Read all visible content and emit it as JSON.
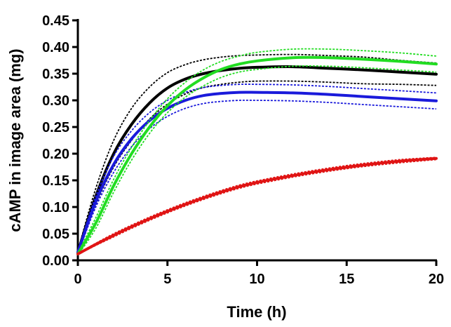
{
  "chart_data": {
    "type": "line",
    "title": "",
    "xlabel": "Time (h)",
    "ylabel": "cAMP in image area (mg)",
    "xlim": [
      0,
      20
    ],
    "ylim": [
      0,
      0.45
    ],
    "xticks": [
      0,
      5,
      10,
      15,
      20
    ],
    "yticks": [
      0.0,
      0.05,
      0.1,
      0.15,
      0.2,
      0.25,
      0.3,
      0.35,
      0.4,
      0.45
    ],
    "xtick_labels": [
      "0",
      "5",
      "10",
      "15",
      "20"
    ],
    "ytick_labels": [
      "0.00",
      "0.05",
      "0.10",
      "0.15",
      "0.20",
      "0.25",
      "0.30",
      "0.35",
      "0.40",
      "0.45"
    ],
    "grid": false,
    "legend": "none",
    "x": [
      0,
      1,
      2,
      3,
      4,
      5,
      6,
      7,
      8,
      9,
      10,
      12,
      14,
      16,
      18,
      20
    ],
    "series": [
      {
        "color": "#000000",
        "values": [
          0.015,
          0.12,
          0.2,
          0.255,
          0.295,
          0.323,
          0.34,
          0.35,
          0.356,
          0.36,
          0.362,
          0.363,
          0.36,
          0.357,
          0.353,
          0.349
        ],
        "upper": [
          0.018,
          0.135,
          0.225,
          0.285,
          0.325,
          0.352,
          0.367,
          0.376,
          0.381,
          0.384,
          0.385,
          0.386,
          0.384,
          0.381,
          0.375,
          0.37
        ],
        "lower": [
          0.012,
          0.105,
          0.175,
          0.225,
          0.265,
          0.293,
          0.312,
          0.324,
          0.33,
          0.334,
          0.336,
          0.336,
          0.334,
          0.331,
          0.33,
          0.328
        ]
      },
      {
        "color": "#1a1adb",
        "values": [
          0.015,
          0.11,
          0.18,
          0.228,
          0.262,
          0.285,
          0.3,
          0.309,
          0.313,
          0.315,
          0.315,
          0.314,
          0.311,
          0.307,
          0.303,
          0.299
        ],
        "upper": [
          0.018,
          0.12,
          0.195,
          0.243,
          0.277,
          0.3,
          0.315,
          0.324,
          0.328,
          0.33,
          0.33,
          0.329,
          0.326,
          0.322,
          0.318,
          0.314
        ],
        "lower": [
          0.012,
          0.1,
          0.165,
          0.213,
          0.247,
          0.27,
          0.285,
          0.294,
          0.298,
          0.3,
          0.3,
          0.299,
          0.296,
          0.292,
          0.288,
          0.284
        ]
      },
      {
        "color": "#22dd22",
        "values": [
          0.012,
          0.07,
          0.14,
          0.2,
          0.25,
          0.29,
          0.32,
          0.342,
          0.358,
          0.368,
          0.374,
          0.38,
          0.38,
          0.377,
          0.373,
          0.368
        ],
        "upper": [
          0.014,
          0.08,
          0.152,
          0.212,
          0.262,
          0.303,
          0.334,
          0.357,
          0.373,
          0.383,
          0.39,
          0.396,
          0.396,
          0.393,
          0.389,
          0.383
        ],
        "lower": [
          0.01,
          0.06,
          0.128,
          0.188,
          0.238,
          0.277,
          0.306,
          0.327,
          0.343,
          0.353,
          0.358,
          0.364,
          0.364,
          0.361,
          0.357,
          0.353
        ]
      },
      {
        "color": "#e01414",
        "values": [
          0.012,
          0.03,
          0.047,
          0.063,
          0.078,
          0.092,
          0.105,
          0.117,
          0.128,
          0.138,
          0.146,
          0.159,
          0.17,
          0.179,
          0.186,
          0.191
        ],
        "upper": [
          0.013,
          0.032,
          0.05,
          0.066,
          0.081,
          0.095,
          0.108,
          0.12,
          0.131,
          0.141,
          0.149,
          0.162,
          0.173,
          0.182,
          0.189,
          0.193
        ],
        "lower": [
          0.011,
          0.028,
          0.044,
          0.06,
          0.075,
          0.089,
          0.102,
          0.114,
          0.125,
          0.135,
          0.143,
          0.156,
          0.167,
          0.176,
          0.183,
          0.189
        ]
      }
    ]
  }
}
